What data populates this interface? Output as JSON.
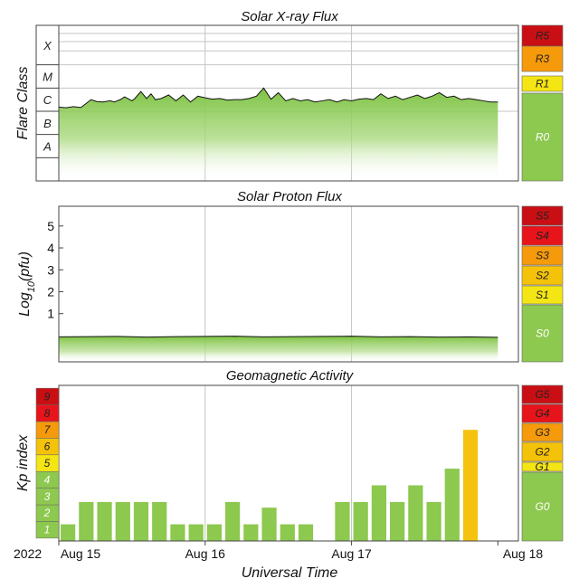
{
  "colors": {
    "green": "#8dc84f",
    "yellow": "#f4e514",
    "gold": "#f5c20a",
    "orange": "#f59a0b",
    "red": "#e8141b",
    "darkred": "#c90f14",
    "kp_highlight": "#f5c30f",
    "flux_line": "#111111"
  },
  "x_axis": {
    "label": "Universal Time",
    "year": "2022",
    "range": [
      0,
      3.14
    ],
    "ticks": [
      {
        "pos": 0,
        "label": "Aug 15"
      },
      {
        "pos": 1,
        "label": "Aug 16"
      },
      {
        "pos": 2,
        "label": "Aug 17"
      },
      {
        "pos": 3,
        "label": "Aug 18"
      }
    ]
  },
  "chart_data": [
    {
      "type": "area",
      "title": "Solar X-ray Flux",
      "ylabel": "Flare Class",
      "class_labels": [
        "X",
        "M",
        "C",
        "B",
        "A"
      ],
      "scale": [
        {
          "label": "R5",
          "color": "darkred"
        },
        {
          "label": "R3",
          "color": "orange"
        },
        {
          "label": "R1",
          "color": "yellow"
        },
        {
          "label": "R0",
          "color": "green"
        }
      ],
      "x_days": [
        0.0,
        0.05,
        0.1,
        0.15,
        0.18,
        0.22,
        0.26,
        0.3,
        0.35,
        0.38,
        0.42,
        0.45,
        0.5,
        0.52,
        0.56,
        0.6,
        0.63,
        0.66,
        0.7,
        0.75,
        0.8,
        0.85,
        0.9,
        0.95,
        1.0,
        1.05,
        1.1,
        1.15,
        1.2,
        1.25,
        1.3,
        1.35,
        1.4,
        1.45,
        1.5,
        1.55,
        1.6,
        1.65,
        1.7,
        1.75,
        1.8,
        1.85,
        1.9,
        1.95,
        2.0,
        2.05,
        2.1,
        2.15,
        2.2,
        2.25,
        2.3,
        2.35,
        2.4,
        2.45,
        2.5,
        2.55,
        2.6,
        2.65,
        2.7,
        2.75,
        2.8,
        2.85,
        2.9,
        2.95,
        3.0
      ],
      "log_flux": [
        -5.82,
        -5.85,
        -5.8,
        -5.84,
        -5.7,
        -5.5,
        -5.58,
        -5.6,
        -5.55,
        -5.6,
        -5.5,
        -5.38,
        -5.55,
        -5.45,
        -5.15,
        -5.45,
        -5.25,
        -5.5,
        -5.45,
        -5.3,
        -5.55,
        -5.3,
        -5.6,
        -5.35,
        -5.42,
        -5.48,
        -5.45,
        -5.52,
        -5.5,
        -5.5,
        -5.45,
        -5.35,
        -5.0,
        -5.48,
        -5.2,
        -5.55,
        -5.45,
        -5.55,
        -5.5,
        -5.6,
        -5.55,
        -5.5,
        -5.6,
        -5.5,
        -5.55,
        -5.48,
        -5.45,
        -5.5,
        -5.25,
        -5.45,
        -5.35,
        -5.5,
        -5.4,
        -5.3,
        -5.45,
        -5.35,
        -5.2,
        -5.4,
        -5.35,
        -5.5,
        -5.45,
        -5.5,
        -5.55,
        -5.6,
        -5.6
      ],
      "ylim": [
        -9,
        -2.3
      ]
    },
    {
      "type": "area",
      "title": "Solar Proton Flux",
      "ylabel": "Log10(pfu)",
      "yticks": [
        1,
        2,
        3,
        4,
        5
      ],
      "ylim": [
        -1.2,
        5.9
      ],
      "scale": [
        {
          "label": "S5",
          "color": "darkred"
        },
        {
          "label": "S4",
          "color": "red"
        },
        {
          "label": "S3",
          "color": "orange"
        },
        {
          "label": "S2",
          "color": "gold"
        },
        {
          "label": "S1",
          "color": "yellow"
        },
        {
          "label": "S0",
          "color": "green"
        }
      ],
      "x_days": [
        0.0,
        0.2,
        0.4,
        0.6,
        0.8,
        1.0,
        1.2,
        1.4,
        1.6,
        1.8,
        2.0,
        2.2,
        2.4,
        2.6,
        2.8,
        3.0
      ],
      "log_pfu": [
        -0.06,
        -0.05,
        -0.04,
        -0.07,
        -0.05,
        -0.04,
        -0.03,
        -0.06,
        -0.05,
        -0.04,
        -0.03,
        -0.06,
        -0.05,
        -0.07,
        -0.06,
        -0.08
      ]
    },
    {
      "type": "bar",
      "title": "Geomagnetic Activity",
      "ylabel": "Kp index",
      "yticks": [
        "1",
        "2",
        "3",
        "4",
        "5",
        "6",
        "7",
        "8",
        "9"
      ],
      "ylim": [
        0.33,
        9.67
      ],
      "scale": [
        {
          "label": "G5",
          "color": "darkred"
        },
        {
          "label": "G4",
          "color": "red"
        },
        {
          "label": "G3",
          "color": "orange"
        },
        {
          "label": "G2",
          "color": "gold"
        },
        {
          "label": "G1",
          "color": "yellow"
        },
        {
          "label": "G0",
          "color": "green"
        }
      ],
      "bar_width_days": 0.125,
      "kp_values": [
        1.33,
        2.67,
        2.67,
        2.67,
        2.67,
        2.67,
        1.33,
        1.33,
        1.33,
        2.67,
        1.33,
        2.33,
        1.33,
        1.33,
        0.33,
        2.67,
        2.67,
        3.67,
        2.67,
        3.67,
        2.67,
        4.67,
        7.0
      ]
    }
  ]
}
